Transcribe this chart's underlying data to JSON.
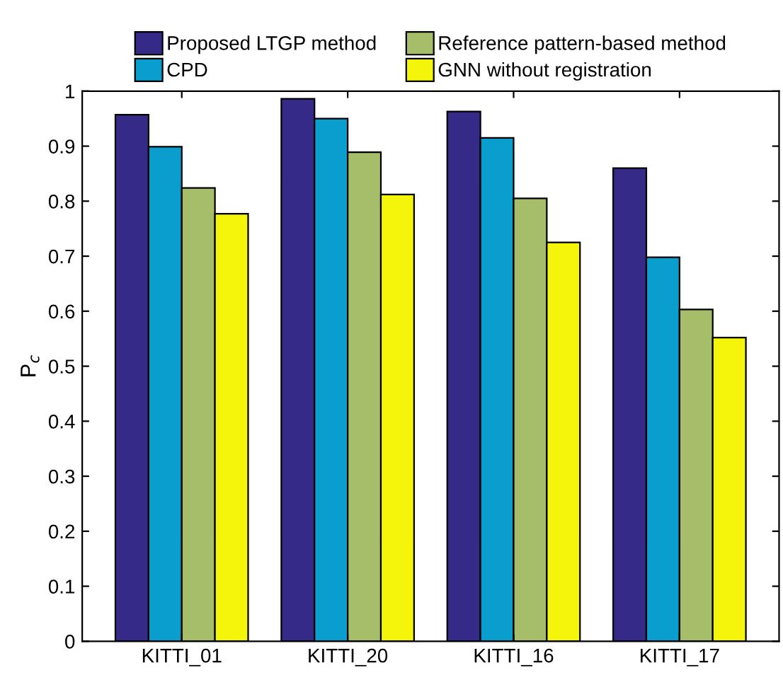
{
  "chart_data": {
    "type": "bar",
    "ylabel": "P$_{c}$",
    "categories": [
      "KITTI_01",
      "KITTI_20",
      "KITTI_16",
      "KITTI_17"
    ],
    "series": [
      {
        "name": "Proposed LTGP method",
        "color": "#352a87",
        "values": [
          0.957,
          0.986,
          0.963,
          0.86
        ]
      },
      {
        "name": "CPD",
        "color": "#0a9ecf",
        "values": [
          0.899,
          0.95,
          0.915,
          0.698
        ]
      },
      {
        "name": "Reference pattern-based method",
        "color": "#a6bd6a",
        "values": [
          0.824,
          0.889,
          0.805,
          0.603
        ]
      },
      {
        "name": "GNN without registration",
        "color": "#f5f50c",
        "values": [
          0.777,
          0.812,
          0.725,
          0.552
        ]
      }
    ],
    "ylim": [
      0,
      1
    ],
    "yticks": [
      0,
      0.1,
      0.2,
      0.3,
      0.4,
      0.5,
      0.6,
      0.7,
      0.8,
      0.9,
      1
    ],
    "grid": false,
    "legend": "top"
  }
}
